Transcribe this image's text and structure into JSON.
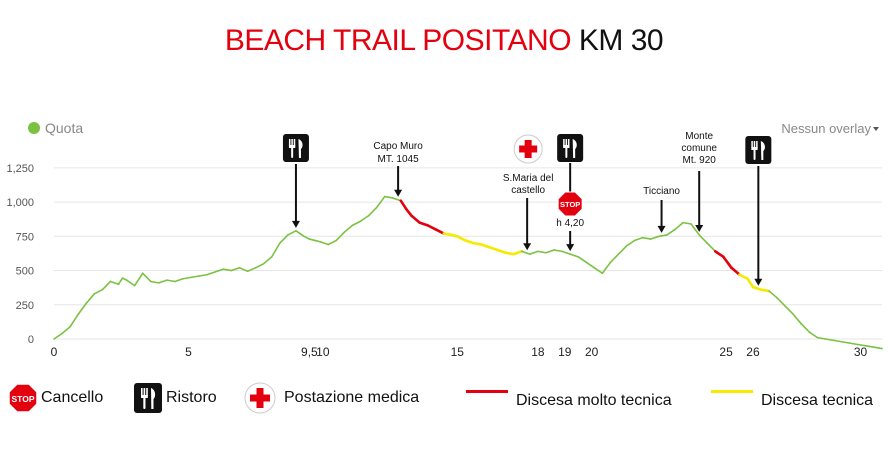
{
  "title": {
    "main": "BEACH TRAIL POSITANO",
    "distance": "KM 30"
  },
  "overlay_control": {
    "label": "Nessun overlay",
    "icon": "caret-down-icon"
  },
  "colors": {
    "title": "#e3000f",
    "profile": "#7bc142",
    "very_technical": "#e3000f",
    "technical": "#f5ea00",
    "grid": "#e6e6e6",
    "legend_dot": "#7bc142",
    "icon_bg": "#111111"
  },
  "legend": {
    "series": "Quota",
    "cancello": "Cancello",
    "ristoro": "Ristoro",
    "medica": "Postazione medica",
    "molto_tecnica": "Discesa molto tecnica",
    "tecnica": "Discesa tecnica"
  },
  "chart_data": {
    "type": "line",
    "xlim": [
      0,
      30.8
    ],
    "ylim": [
      0,
      1300
    ],
    "x_ticks": [
      "0",
      "5",
      "9,5",
      "10",
      "15",
      "18",
      "19",
      "20",
      "25",
      "26",
      "30"
    ],
    "x_tick_values": [
      0,
      5,
      9.5,
      10,
      15,
      18,
      19,
      20,
      25,
      26,
      30
    ],
    "y_ticks": [
      "0",
      "250",
      "500",
      "750",
      "1,000",
      "1,250"
    ],
    "y_tick_values": [
      0,
      250,
      500,
      750,
      1000,
      1250
    ],
    "grid": true,
    "series": [
      {
        "name": "Quota",
        "x": [
          0,
          0.3,
          0.6,
          0.9,
          1.2,
          1.5,
          1.8,
          2.1,
          2.4,
          2.55,
          2.7,
          3.0,
          3.3,
          3.6,
          3.9,
          4.2,
          4.5,
          4.8,
          5.1,
          5.4,
          5.7,
          6.0,
          6.3,
          6.6,
          6.9,
          7.2,
          7.5,
          7.8,
          8.1,
          8.4,
          8.7,
          9.0,
          9.3,
          9.5,
          9.7,
          9.9,
          10.2,
          10.5,
          10.8,
          11.1,
          11.4,
          11.7,
          12.0,
          12.3,
          12.6,
          12.9,
          13.1,
          13.3,
          13.6,
          13.9,
          14.2,
          14.5,
          14.8,
          15.0,
          15.3,
          15.6,
          15.9,
          16.2,
          16.5,
          16.8,
          17.1,
          17.4,
          17.7,
          18.0,
          18.3,
          18.6,
          18.9,
          19.2,
          19.5,
          19.8,
          20.1,
          20.4,
          20.7,
          21.0,
          21.3,
          21.6,
          21.9,
          22.2,
          22.5,
          22.8,
          23.1,
          23.4,
          23.7,
          24.0,
          24.3,
          24.6,
          24.9,
          25.2,
          25.5,
          25.8,
          26.0,
          26.3,
          26.6,
          26.9,
          27.2,
          27.5,
          27.8,
          28.1,
          28.4,
          28.7,
          29.0,
          29.3,
          29.6,
          29.9,
          30.2,
          30.5,
          30.8
        ],
        "y": [
          0,
          40,
          90,
          180,
          260,
          330,
          360,
          420,
          400,
          445,
          430,
          390,
          480,
          420,
          410,
          430,
          420,
          440,
          450,
          460,
          470,
          490,
          510,
          500,
          520,
          495,
          520,
          550,
          600,
          700,
          760,
          790,
          750,
          730,
          720,
          710,
          690,
          720,
          780,
          830,
          860,
          900,
          960,
          1040,
          1030,
          1010,
          950,
          900,
          850,
          830,
          800,
          770,
          760,
          750,
          720,
          700,
          690,
          670,
          650,
          630,
          620,
          640,
          620,
          640,
          630,
          650,
          640,
          620,
          600,
          560,
          520,
          480,
          560,
          620,
          680,
          720,
          740,
          730,
          750,
          760,
          800,
          850,
          840,
          760,
          700,
          640,
          600,
          520,
          470,
          440,
          380,
          360,
          350,
          300,
          240,
          180,
          110,
          50,
          10,
          0,
          -10,
          -20,
          -30,
          -40,
          -50,
          -60,
          -70
        ],
        "segments": [
          {
            "type": "Discesa molto tecnica",
            "from_km": 13.0,
            "to_km": 14.6
          },
          {
            "type": "Discesa tecnica",
            "from_km": 14.6,
            "to_km": 17.4
          },
          {
            "type": "Discesa molto tecnica",
            "from_km": 24.6,
            "to_km": 25.4
          },
          {
            "type": "Discesa tecnica",
            "from_km": 25.4,
            "to_km": 26.6
          }
        ]
      }
    ],
    "annotations": [
      {
        "id": "ristoro-1",
        "kind": "Ristoro",
        "km": 9.0
      },
      {
        "id": "capo-muro",
        "kind": "label",
        "km": 12.8,
        "lines": [
          "Capo Muro",
          "MT. 1045"
        ]
      },
      {
        "id": "santa-maria",
        "kind": "label",
        "km": 17.6,
        "lines": [
          "S.Maria del",
          "castello"
        ]
      },
      {
        "id": "medica",
        "kind": "Postazione medica",
        "km": 17.6
      },
      {
        "id": "ristoro-2",
        "kind": "Ristoro",
        "km": 19.2
      },
      {
        "id": "cancello",
        "kind": "Cancello",
        "km": 19.2,
        "time": "h 4,20"
      },
      {
        "id": "ticciano",
        "kind": "label",
        "km": 22.6,
        "lines": [
          "Ticciano"
        ]
      },
      {
        "id": "monte-comune",
        "kind": "label",
        "km": 24.0,
        "lines": [
          "Monte",
          "comune",
          "Mt. 920"
        ]
      },
      {
        "id": "ristoro-3",
        "kind": "Ristoro",
        "km": 26.2
      }
    ]
  }
}
